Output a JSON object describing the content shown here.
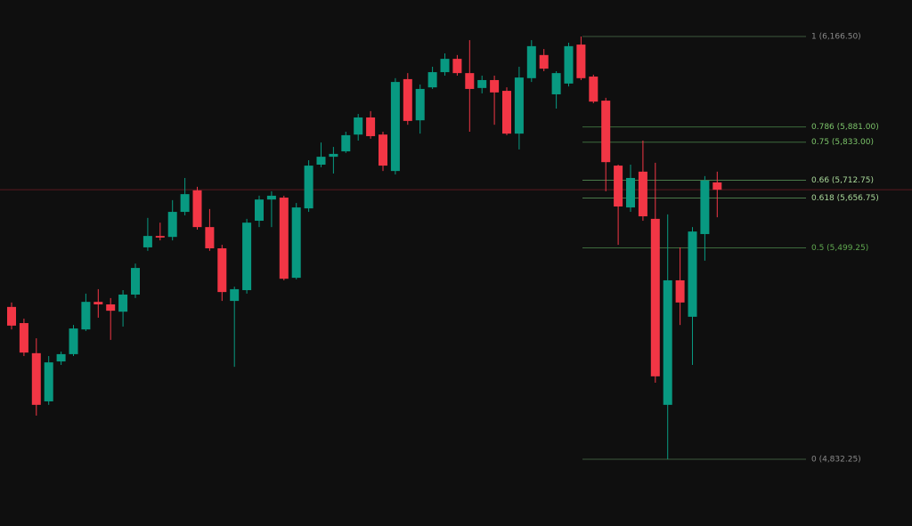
{
  "chart_data": {
    "type": "candlestick",
    "open": [
      5313,
      5262,
      5167,
      5015,
      5141,
      5164,
      5242,
      5329,
      5321,
      5298,
      5352,
      5501,
      5537,
      5534,
      5613,
      5681,
      5565,
      5498,
      5332,
      5366,
      5585,
      5652,
      5658,
      5405,
      5624,
      5762,
      5787,
      5804,
      5857,
      5911,
      5857,
      5742,
      6032,
      5902,
      6006,
      6054,
      6096,
      6051,
      6004,
      6029,
      5995,
      5860,
      6035,
      6108,
      5984,
      6018,
      6141,
      6040,
      5964,
      5759,
      5627,
      5740,
      5591,
      5004,
      5397,
      5282,
      5543,
      5706
    ],
    "high": [
      5327,
      5276,
      5214,
      5158,
      5172,
      5256,
      5355,
      5369,
      5341,
      5366,
      5450,
      5594,
      5579,
      5650,
      5720,
      5692,
      5622,
      5509,
      5377,
      5591,
      5664,
      5678,
      5664,
      5641,
      5776,
      5832,
      5818,
      5866,
      5922,
      5931,
      5866,
      6035,
      6051,
      6015,
      6071,
      6113,
      6108,
      6155,
      6043,
      6043,
      6006,
      6071,
      6155,
      6127,
      6057,
      6147,
      6166.5,
      6046,
      5973,
      5762,
      5762,
      5838,
      5768,
      5605,
      5501,
      5565,
      5726,
      5740
    ],
    "low": [
      5242,
      5158,
      4970,
      5004,
      5130,
      5158,
      5237,
      5279,
      5209,
      5251,
      5341,
      5490,
      5523,
      5523,
      5602,
      5557,
      5490,
      5332,
      5124,
      5355,
      5565,
      5565,
      5397,
      5400,
      5613,
      5754,
      5734,
      5799,
      5838,
      5844,
      5742,
      5731,
      5888,
      5860,
      6001,
      6043,
      6043,
      5866,
      5987,
      5888,
      5855,
      5810,
      6023,
      6057,
      5939,
      6009,
      6029,
      5956,
      5678,
      5509,
      5613,
      5585,
      5074,
      4832.25,
      5256,
      5130,
      5459,
      5596
    ],
    "close": [
      5254,
      5169,
      5004,
      5138,
      5164,
      5245,
      5329,
      5321,
      5301,
      5352,
      5436,
      5537,
      5532,
      5613,
      5669,
      5565,
      5498,
      5360,
      5369,
      5579,
      5652,
      5664,
      5402,
      5627,
      5759,
      5787,
      5796,
      5855,
      5911,
      5852,
      5759,
      6023,
      5900,
      6001,
      6054,
      6096,
      6051,
      6001,
      6029,
      5990,
      5860,
      6037,
      6136,
      6065,
      6051,
      6136,
      6035,
      5961,
      5770,
      5630,
      5720,
      5599,
      5094,
      5397,
      5327,
      5551,
      5712,
      5683
    ],
    "colors": {
      "up": "#089981",
      "down": "#f23645",
      "price_line": "#5a1a20"
    },
    "ylim": [
      4621.6,
      6281.7
    ],
    "fib_levels": [
      {
        "ratio": 1,
        "price": 6166.5,
        "label": "1 (6,166.50)",
        "color": "#8a8a8a",
        "line_color": "#3d5a3d"
      },
      {
        "ratio": 0.786,
        "price": 5881,
        "label": "0.786 (5,881.00)",
        "color": "#7cc46a",
        "line_color": "#3d6b3d"
      },
      {
        "ratio": 0.75,
        "price": 5833,
        "label": "0.75 (5,833.00)",
        "color": "#7cc46a",
        "line_color": "#3d6b3d"
      },
      {
        "ratio": 0.66,
        "price": 5712.75,
        "label": "0.66 (5,712.75)",
        "color": "#a9d99a",
        "line_color": "#4a7a4a"
      },
      {
        "ratio": 0.618,
        "price": 5656.75,
        "label": "0.618 (5,656.75)",
        "color": "#a9d99a",
        "line_color": "#4a7a4a"
      },
      {
        "ratio": 0.5,
        "price": 5499.25,
        "label": "0.5 (5,499.25)",
        "color": "#5fa84f",
        "line_color": "#3d6b3d"
      },
      {
        "ratio": 0,
        "price": 4832.25,
        "label": "0 (4,832.25)",
        "color": "#8a8a8a",
        "line_color": "#3d5a3d"
      }
    ]
  }
}
